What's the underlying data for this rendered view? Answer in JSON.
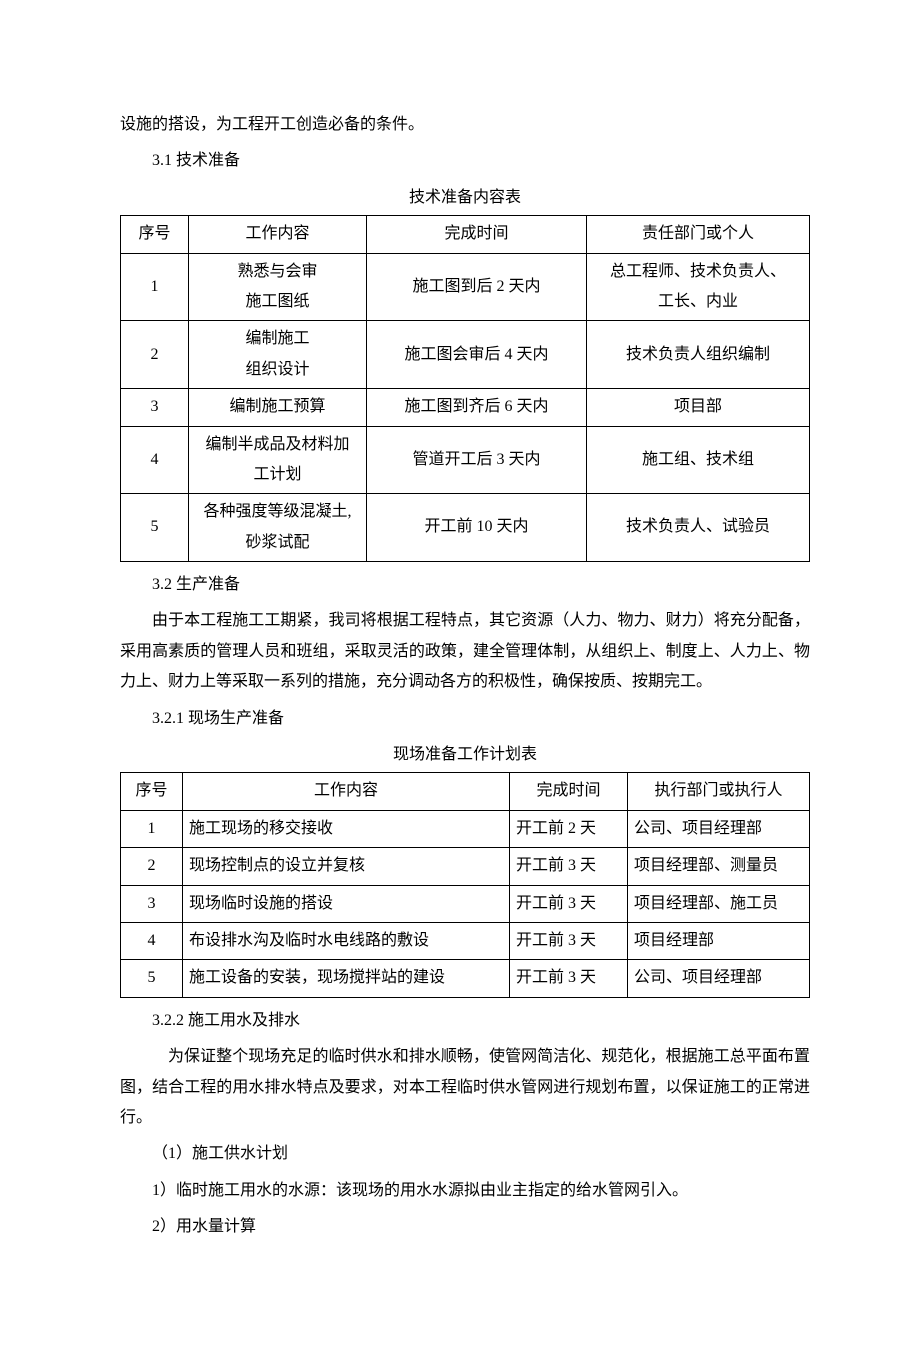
{
  "intro_line": "设施的搭设，为工程开工创造必备的条件。",
  "sec31_heading": "3.1 技术准备",
  "table1_title": "技术准备内容表",
  "table1": {
    "headers": [
      "序号",
      "工作内容",
      "完成时间",
      "责任部门或个人"
    ],
    "rows": [
      {
        "n": "1",
        "work_l1": "熟悉与会审",
        "work_l2": "施工图纸",
        "time": "施工图到后 2 天内",
        "dept_l1": "总工程师、技术负责人、",
        "dept_l2": "工长、内业"
      },
      {
        "n": "2",
        "work_l1": "编制施工",
        "work_l2": "组织设计",
        "time": "施工图会审后 4 天内",
        "dept_l1": "技术负责人组织编制",
        "dept_l2": ""
      },
      {
        "n": "3",
        "work_l1": "编制施工预算",
        "work_l2": "",
        "time": "施工图到齐后 6 天内",
        "dept_l1": "项目部",
        "dept_l2": ""
      },
      {
        "n": "4",
        "work_l1": "编制半成品及材料加",
        "work_l2": "工计划",
        "time": "管道开工后 3 天内",
        "dept_l1": "施工组、技术组",
        "dept_l2": ""
      },
      {
        "n": "5",
        "work_l1": "各种强度等级混凝土,",
        "work_l2": "砂浆试配",
        "time": "开工前 10 天内",
        "dept_l1": "技术负责人、试验员",
        "dept_l2": ""
      }
    ]
  },
  "sec32_heading": "3.2 生产准备",
  "sec32_para": "由于本工程施工工期紧，我司将根据工程特点，其它资源（人力、物力、财力）将充分配备，采用高素质的管理人员和班组，采取灵活的政策，建全管理体制，从组织上、制度上、人力上、物力上、财力上等采取一系列的措施，充分调动各方的积极性，确保按质、按期完工。",
  "sec321_heading": "3.2.1 现场生产准备",
  "table2_title": "现场准备工作计划表",
  "table2": {
    "headers": [
      "序号",
      "工作内容",
      "完成时间",
      "执行部门或执行人"
    ],
    "rows": [
      {
        "n": "1",
        "work": "施工现场的移交接收",
        "time": "开工前 2 天",
        "dept": "公司、项目经理部"
      },
      {
        "n": "2",
        "work": "现场控制点的设立并复核",
        "time": "开工前 3 天",
        "dept": "项目经理部、测量员"
      },
      {
        "n": "3",
        "work": "现场临时设施的搭设",
        "time": "开工前 3 天",
        "dept": "项目经理部、施工员"
      },
      {
        "n": "4",
        "work": "布设排水沟及临时水电线路的敷设",
        "time": "开工前 3 天",
        "dept": "项目经理部"
      },
      {
        "n": "5",
        "work": "施工设备的安装，现场搅拌站的建设",
        "time": "开工前 3 天",
        "dept": "公司、项目经理部"
      }
    ]
  },
  "sec322_heading": "3.2.2 施工用水及排水",
  "sec322_para": "为保证整个现场充足的临时供水和排水顺畅，使管网简洁化、规范化，根据施工总平面布置图，结合工程的用水排水特点及要求，对本工程临时供水管网进行规划布置，以保证施工的正常进行。",
  "line_plan": "（1）施工供水计划",
  "line_source": "1）临时施工用水的水源：该现场的用水水源拟由业主指定的给水管网引入。",
  "line_calc": "2）用水量计算"
}
